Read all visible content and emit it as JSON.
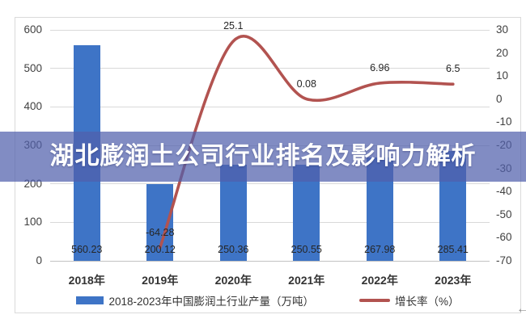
{
  "overlay": {
    "title": "湖北膨润土公司行业排名及影响力解析"
  },
  "icons": {
    "corner_arrow": "←"
  },
  "colors": {
    "bar": "#3E74C6",
    "line": "#B25350",
    "band": "rgba(81,96,172,0.72)",
    "grid": "#D9D9D9",
    "baseline": "#C2C2C2",
    "axis_text": "#404040",
    "value_label_text": "#262626",
    "category_text": "#333333",
    "legend_text": "#333333",
    "frame_border": "#DADADA",
    "title_text": "#FFFFFF",
    "arrow": "#8F8F8F"
  },
  "chart_data": {
    "type": "bar",
    "subtype": "combo-bar-line-dual-axis",
    "categories": [
      "2018年",
      "2019年",
      "2020年",
      "2021年",
      "2022年",
      "2023年"
    ],
    "series": [
      {
        "name": "2018-2023年中国膨润土行业产量（万吨）",
        "type": "bar",
        "axis": "left",
        "color": "#3E74C6",
        "values": [
          560.23,
          200.12,
          250.36,
          250.55,
          267.98,
          285.41
        ]
      },
      {
        "name": "增长率（%）",
        "type": "line",
        "axis": "right",
        "color": "#B25350",
        "smooth": true,
        "values": [
          null,
          -64.28,
          25.1,
          0.08,
          6.96,
          6.5
        ]
      }
    ],
    "left_axis": {
      "min": 0,
      "max": 600,
      "tick_step": 100,
      "ticks": [
        "600",
        "500",
        "400",
        "300",
        "200",
        "100",
        "0"
      ]
    },
    "right_axis": {
      "min": -70,
      "max": 30,
      "tick_step": 10,
      "ticks": [
        "30",
        "20",
        "10",
        "0",
        "-10",
        "-20",
        "-30",
        "-40",
        "-50",
        "-60",
        "-70"
      ]
    },
    "grid": true,
    "legend_position": "bottom",
    "value_labels": "shown"
  }
}
